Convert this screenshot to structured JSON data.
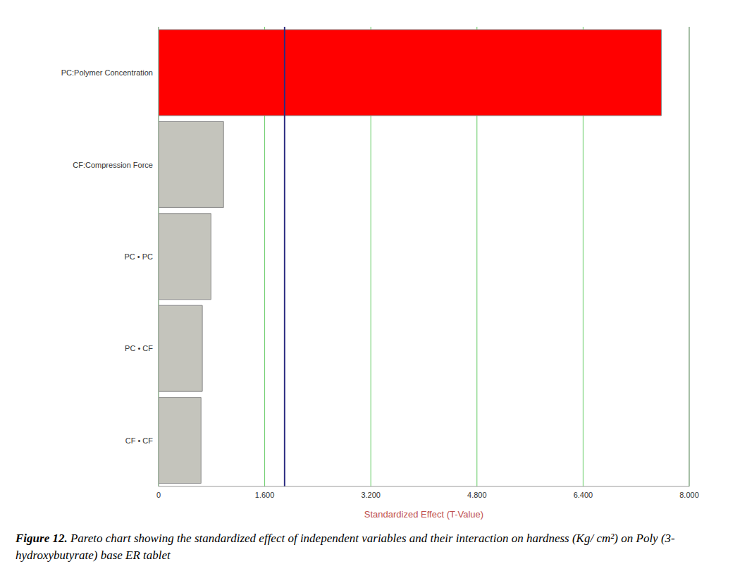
{
  "chart_data": {
    "type": "bar",
    "orientation": "horizontal",
    "categories": [
      "PC:Polymer Concentration",
      "CF:Compression Force",
      "PC • PC",
      "PC • CF",
      "CF • CF"
    ],
    "values": [
      7.58,
      0.98,
      0.79,
      0.66,
      0.64
    ],
    "colors": [
      "#ff0000",
      "#c4c4bc",
      "#c4c4bc",
      "#c4c4bc",
      "#c4c4bc"
    ],
    "xlabel": "Standardized Effect (T-Value)",
    "xlim": [
      0,
      8
    ],
    "xticks": [
      0,
      {
        "value": 1.6,
        "label": "1.600"
      },
      {
        "value": 3.2,
        "label": "3.200"
      },
      {
        "value": 4.8,
        "label": "4.800"
      },
      {
        "value": 6.4,
        "label": "6.400"
      },
      {
        "value": 8,
        "label": "8.000"
      }
    ],
    "grid": true,
    "reference_line": 1.9,
    "caption_label": "Figure 12.",
    "caption": "Pareto chart showing the standardized effect of independent variables and their interaction on hardness (Kg/ cm²) on Poly (3-hydroxybutyrate) base ER tablet"
  }
}
